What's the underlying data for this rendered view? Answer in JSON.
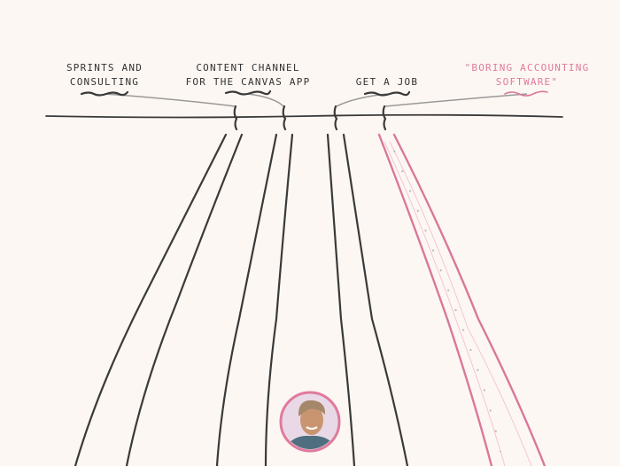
{
  "nodes": [
    {
      "lines": [
        "SPRINTS AND",
        "CONSULTING"
      ]
    },
    {
      "lines": [
        "CONTENT CHANNEL",
        "FOR THE CANVAS APP"
      ]
    },
    {
      "lines": [
        "GET A JOB"
      ]
    },
    {
      "lines": [
        "\"BORING ACCOUNTING",
        "SOFTWARE\""
      ]
    }
  ]
}
